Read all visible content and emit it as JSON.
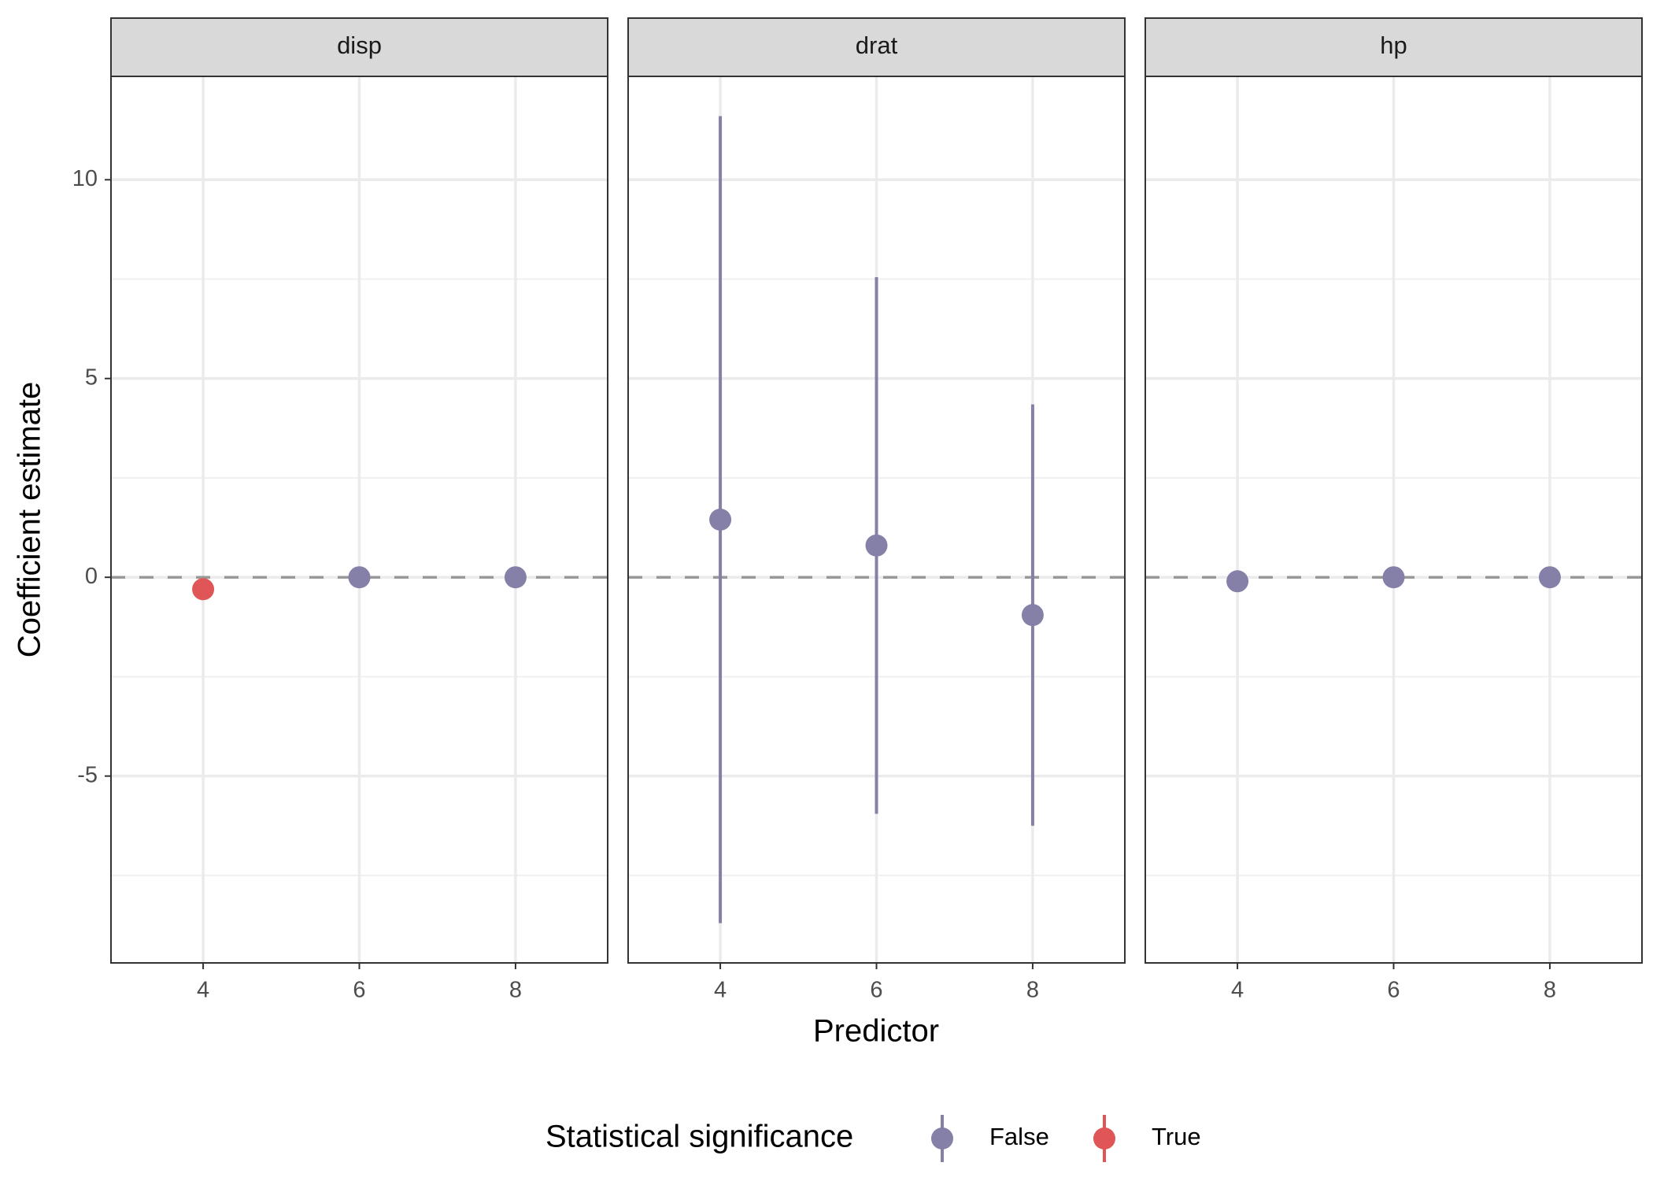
{
  "chart_data": {
    "type": "scatter",
    "subtype": "point-range faceted",
    "xlabel": "Predictor",
    "ylabel": "Coefficient estimate",
    "xlim": [
      2.82,
      9.18
    ],
    "ylim": [
      -9.7,
      12.6
    ],
    "x_ticks": [
      4,
      6,
      8
    ],
    "y_ticks": [
      -5,
      0,
      5,
      10
    ],
    "y_tick_labels": [
      "-5",
      "0",
      "5",
      "10"
    ],
    "x_tick_labels": [
      "4",
      "6",
      "8"
    ],
    "grid": true,
    "reference_line": {
      "y": 0,
      "style": "dashed",
      "color": "#999999"
    },
    "legend": {
      "title": "Statistical significance",
      "position": "bottom",
      "entries": [
        {
          "label": "False",
          "color": "#8580A8"
        },
        {
          "label": "True",
          "color": "#E05555"
        }
      ]
    },
    "facets": [
      {
        "label": "disp",
        "points": [
          {
            "x": 4,
            "estimate": -0.3,
            "significant": true
          },
          {
            "x": 6,
            "estimate": 0.0,
            "significant": false
          },
          {
            "x": 8,
            "estimate": 0.0,
            "significant": false
          }
        ]
      },
      {
        "label": "drat",
        "points": [
          {
            "x": 4,
            "estimate": 1.45,
            "lower": -8.7,
            "upper": 11.6,
            "significant": false
          },
          {
            "x": 6,
            "estimate": 0.8,
            "lower": -5.95,
            "upper": 7.55,
            "significant": false
          },
          {
            "x": 8,
            "estimate": -0.95,
            "lower": -6.25,
            "upper": 4.35,
            "significant": false
          }
        ]
      },
      {
        "label": "hp",
        "points": [
          {
            "x": 4,
            "estimate": -0.1,
            "significant": false
          },
          {
            "x": 6,
            "estimate": 0.0,
            "significant": false
          },
          {
            "x": 8,
            "estimate": 0.0,
            "significant": false
          }
        ]
      }
    ]
  }
}
